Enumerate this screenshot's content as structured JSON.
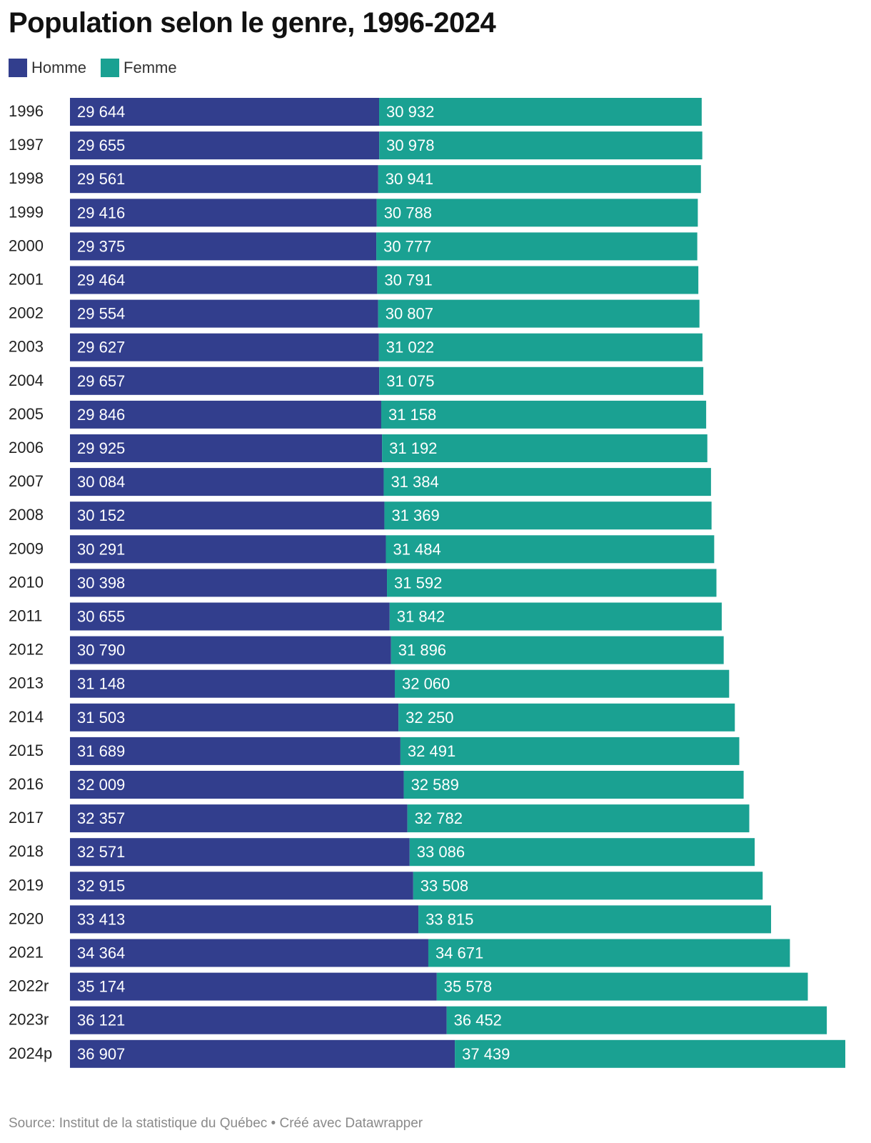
{
  "title": "Population selon le genre, 1996-2024",
  "source": "Source: Institut de la statistique du Québec • Créé avec Datawrapper",
  "colors": {
    "homme": "#323e8d",
    "femme": "#1aa192"
  },
  "chart_data": {
    "type": "bar",
    "orientation": "horizontal",
    "stacked": true,
    "title": "Population selon le genre, 1996-2024",
    "legend_position": "top-left",
    "grid": false,
    "categories": [
      "1996",
      "1997",
      "1998",
      "1999",
      "2000",
      "2001",
      "2002",
      "2003",
      "2004",
      "2005",
      "2006",
      "2007",
      "2008",
      "2009",
      "2010",
      "2011",
      "2012",
      "2013",
      "2014",
      "2015",
      "2016",
      "2017",
      "2018",
      "2019",
      "2020",
      "2021",
      "2022r",
      "2023r",
      "2024p"
    ],
    "series": [
      {
        "name": "Homme",
        "color": "#323e8d",
        "values": [
          29644,
          29655,
          29561,
          29416,
          29375,
          29464,
          29554,
          29627,
          29657,
          29846,
          29925,
          30084,
          30152,
          30291,
          30398,
          30655,
          30790,
          31148,
          31503,
          31689,
          32009,
          32357,
          32571,
          32915,
          33413,
          34364,
          35174,
          36121,
          36907
        ],
        "labels": [
          "29 644",
          "29 655",
          "29 561",
          "29 416",
          "29 375",
          "29 464",
          "29 554",
          "29 627",
          "29 657",
          "29 846",
          "29 925",
          "30 084",
          "30 152",
          "30 291",
          "30 398",
          "30 655",
          "30 790",
          "31 148",
          "31 503",
          "31 689",
          "32 009",
          "32 357",
          "32 571",
          "32 915",
          "33 413",
          "34 364",
          "35 174",
          "36 121",
          "36 907"
        ]
      },
      {
        "name": "Femme",
        "color": "#1aa192",
        "values": [
          30932,
          30978,
          30941,
          30788,
          30777,
          30791,
          30807,
          31022,
          31075,
          31158,
          31192,
          31384,
          31369,
          31484,
          31592,
          31842,
          31896,
          32060,
          32250,
          32491,
          32589,
          32782,
          33086,
          33508,
          33815,
          34671,
          35578,
          36452,
          37439
        ],
        "labels": [
          "30 932",
          "30 978",
          "30 941",
          "30 788",
          "30 777",
          "30 791",
          "30 807",
          "31 022",
          "31 075",
          "31 158",
          "31 192",
          "31 384",
          "31 369",
          "31 484",
          "31 592",
          "31 842",
          "31 896",
          "32 060",
          "32 250",
          "32 491",
          "32 589",
          "32 782",
          "33 086",
          "33 508",
          "33 815",
          "34 671",
          "35 578",
          "36 452",
          "37 439"
        ]
      }
    ]
  }
}
